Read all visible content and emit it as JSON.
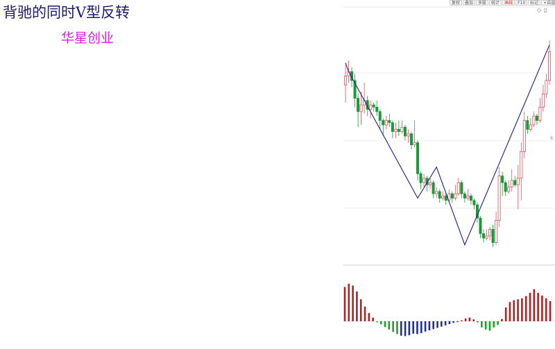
{
  "title": "背驰的同时V型反转",
  "stock_name": "华星创业",
  "toolbar": [
    "复权",
    "叠加",
    "多股",
    "统计",
    "画线",
    "F10",
    "标记",
    "+自选"
  ],
  "toolbar_active_index": 4,
  "side_icons": [
    "diamond-icon",
    "panel-icon"
  ],
  "right_tag": "9.",
  "colors": {
    "up": "#e0505a",
    "down": "#1a9a3a",
    "trend": "#2c2c8c",
    "macd_pos": "#b02020",
    "macd_neg_blue": "#1c2ea0",
    "macd_neg_green": "#20a020",
    "title": "#1a1a6e",
    "stock_name": "#d81ed8"
  },
  "chart_data": [
    {
      "type": "candlestick",
      "title": "",
      "xlabel": "",
      "ylabel": "",
      "ylim": [
        0,
        100
      ],
      "grid": true,
      "candles": [
        {
          "o": 78,
          "c": 82,
          "h": 87,
          "l": 70
        },
        {
          "o": 82,
          "c": 84,
          "h": 89,
          "l": 79
        },
        {
          "o": 84,
          "c": 80,
          "h": 86,
          "l": 77
        },
        {
          "o": 80,
          "c": 72,
          "h": 83,
          "l": 68
        },
        {
          "o": 72,
          "c": 66,
          "h": 74,
          "l": 59
        },
        {
          "o": 66,
          "c": 69,
          "h": 75,
          "l": 60
        },
        {
          "o": 69,
          "c": 71,
          "h": 79,
          "l": 65
        },
        {
          "o": 71,
          "c": 67,
          "h": 73,
          "l": 64
        },
        {
          "o": 67,
          "c": 69,
          "h": 71,
          "l": 63
        },
        {
          "o": 69,
          "c": 68,
          "h": 70,
          "l": 66
        },
        {
          "o": 68,
          "c": 66,
          "h": 71,
          "l": 64
        },
        {
          "o": 66,
          "c": 62,
          "h": 67,
          "l": 58
        },
        {
          "o": 62,
          "c": 60,
          "h": 63,
          "l": 55
        },
        {
          "o": 60,
          "c": 62,
          "h": 64,
          "l": 58
        },
        {
          "o": 62,
          "c": 61,
          "h": 65,
          "l": 59
        },
        {
          "o": 61,
          "c": 57,
          "h": 62,
          "l": 54
        },
        {
          "o": 57,
          "c": 58,
          "h": 61,
          "l": 54
        },
        {
          "o": 58,
          "c": 57,
          "h": 62,
          "l": 55
        },
        {
          "o": 57,
          "c": 59,
          "h": 62,
          "l": 56
        },
        {
          "o": 59,
          "c": 55,
          "h": 60,
          "l": 53
        },
        {
          "o": 55,
          "c": 56,
          "h": 58,
          "l": 52
        },
        {
          "o": 56,
          "c": 51,
          "h": 57,
          "l": 49
        },
        {
          "o": 51,
          "c": 52,
          "h": 62,
          "l": 50
        },
        {
          "o": 52,
          "c": 38,
          "h": 53,
          "l": 35
        },
        {
          "o": 38,
          "c": 34,
          "h": 39,
          "l": 31
        },
        {
          "o": 34,
          "c": 36,
          "h": 38,
          "l": 32
        },
        {
          "o": 36,
          "c": 33,
          "h": 37,
          "l": 30
        },
        {
          "o": 33,
          "c": 34,
          "h": 36,
          "l": 31
        },
        {
          "o": 34,
          "c": 29,
          "h": 35,
          "l": 27
        },
        {
          "o": 29,
          "c": 30,
          "h": 32,
          "l": 27
        },
        {
          "o": 30,
          "c": 27,
          "h": 31,
          "l": 25
        },
        {
          "o": 27,
          "c": 28,
          "h": 30,
          "l": 26
        },
        {
          "o": 28,
          "c": 26,
          "h": 29,
          "l": 24
        },
        {
          "o": 26,
          "c": 29,
          "h": 31,
          "l": 25
        },
        {
          "o": 29,
          "c": 27,
          "h": 30,
          "l": 25
        },
        {
          "o": 27,
          "c": 29,
          "h": 33,
          "l": 26
        },
        {
          "o": 29,
          "c": 34,
          "h": 36,
          "l": 28
        },
        {
          "o": 34,
          "c": 29,
          "h": 35,
          "l": 27
        },
        {
          "o": 29,
          "c": 27,
          "h": 30,
          "l": 25
        },
        {
          "o": 27,
          "c": 28,
          "h": 31,
          "l": 26
        },
        {
          "o": 28,
          "c": 26,
          "h": 29,
          "l": 24
        },
        {
          "o": 26,
          "c": 24,
          "h": 27,
          "l": 22
        },
        {
          "o": 24,
          "c": 18,
          "h": 25,
          "l": 16
        },
        {
          "o": 18,
          "c": 11,
          "h": 19,
          "l": 9
        },
        {
          "o": 11,
          "c": 9,
          "h": 13,
          "l": 7
        },
        {
          "o": 9,
          "c": 10,
          "h": 13,
          "l": 8
        },
        {
          "o": 10,
          "c": 13,
          "h": 14,
          "l": 8
        },
        {
          "o": 13,
          "c": 7,
          "h": 15,
          "l": 5
        },
        {
          "o": 7,
          "c": 17,
          "h": 21,
          "l": 6
        },
        {
          "o": 17,
          "c": 37,
          "h": 41,
          "l": 14
        },
        {
          "o": 37,
          "c": 34,
          "h": 39,
          "l": 28
        },
        {
          "o": 34,
          "c": 30,
          "h": 35,
          "l": 28
        },
        {
          "o": 30,
          "c": 32,
          "h": 35,
          "l": 29
        },
        {
          "o": 32,
          "c": 35,
          "h": 40,
          "l": 30
        },
        {
          "o": 35,
          "c": 33,
          "h": 37,
          "l": 32
        },
        {
          "o": 33,
          "c": 36,
          "h": 42,
          "l": 22
        },
        {
          "o": 36,
          "c": 48,
          "h": 52,
          "l": 26
        },
        {
          "o": 48,
          "c": 62,
          "h": 66,
          "l": 45
        },
        {
          "o": 62,
          "c": 58,
          "h": 64,
          "l": 56
        },
        {
          "o": 58,
          "c": 60,
          "h": 63,
          "l": 57
        },
        {
          "o": 60,
          "c": 64,
          "h": 66,
          "l": 59
        },
        {
          "o": 64,
          "c": 62,
          "h": 65,
          "l": 60
        },
        {
          "o": 62,
          "c": 68,
          "h": 72,
          "l": 61
        },
        {
          "o": 68,
          "c": 74,
          "h": 78,
          "l": 66
        },
        {
          "o": 74,
          "c": 80,
          "h": 83,
          "l": 72
        },
        {
          "o": 80,
          "c": 93,
          "h": 98,
          "l": 78
        }
      ],
      "trend_points": [
        {
          "i": 0,
          "v": 88
        },
        {
          "i": 1,
          "v": 84
        },
        {
          "i": 23,
          "v": 27
        },
        {
          "i": 29,
          "v": 41
        },
        {
          "i": 38,
          "v": 6
        },
        {
          "i": 65,
          "v": 96
        }
      ]
    },
    {
      "type": "bar",
      "title": "MACD",
      "ylim": [
        -1,
        1
      ],
      "values": [
        0.75,
        0.82,
        0.78,
        0.65,
        0.48,
        0.32,
        0.18,
        0.08,
        -0.05,
        -0.15,
        -0.28,
        -0.4,
        -0.52,
        -0.62,
        -0.7,
        -0.72,
        -0.68,
        -0.6,
        -0.62,
        -0.58,
        -0.5,
        -0.44,
        -0.38,
        -0.32,
        -0.26,
        -0.2,
        -0.14,
        -0.08,
        -0.04,
        0.02,
        0.06,
        0.08,
        0.04,
        -0.06,
        -0.3,
        -0.4,
        -0.46,
        -0.3,
        -0.18,
        0.05,
        0.3,
        0.42,
        0.46,
        0.48,
        0.5,
        0.55,
        0.62,
        0.7,
        0.62,
        0.56,
        0.5,
        0.44
      ],
      "color_segments": {
        "pos": "macd_pos",
        "neg_early": "macd_neg_blue",
        "neg_green": "macd_neg_green"
      }
    }
  ]
}
